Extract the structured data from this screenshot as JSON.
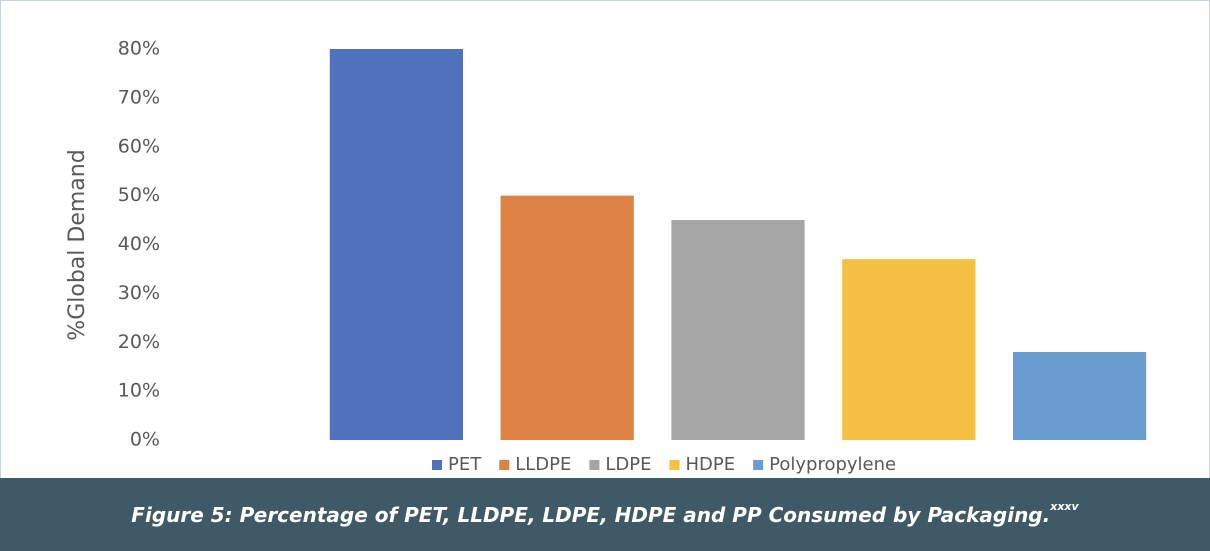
{
  "chart_data": {
    "type": "bar",
    "categories": [
      "PET",
      "LLDPE",
      "LDPE",
      "HDPE",
      "Polypropylene"
    ],
    "values": [
      80,
      50,
      45,
      37,
      18
    ],
    "colors": [
      "#4f71be",
      "#dd8244",
      "#a5a5a5",
      "#f5c042",
      "#6a9bd1"
    ],
    "y_label": "%Global Demand",
    "ylim": [
      0,
      80
    ],
    "yticks": [
      {
        "value": 0,
        "label": "0%"
      },
      {
        "value": 10,
        "label": "10%"
      },
      {
        "value": 20,
        "label": "20%"
      },
      {
        "value": 30,
        "label": "30%"
      },
      {
        "value": 40,
        "label": "40%"
      },
      {
        "value": 50,
        "label": "50%"
      },
      {
        "value": 60,
        "label": "60%"
      },
      {
        "value": 70,
        "label": "70%"
      },
      {
        "value": 80,
        "label": "80%"
      }
    ],
    "grid": false,
    "legend": "bottom"
  },
  "caption": {
    "text": "Figure 5: Percentage of PET, LLDPE, LDPE, HDPE and PP Consumed by Packaging.",
    "superscript": "xxxv"
  }
}
